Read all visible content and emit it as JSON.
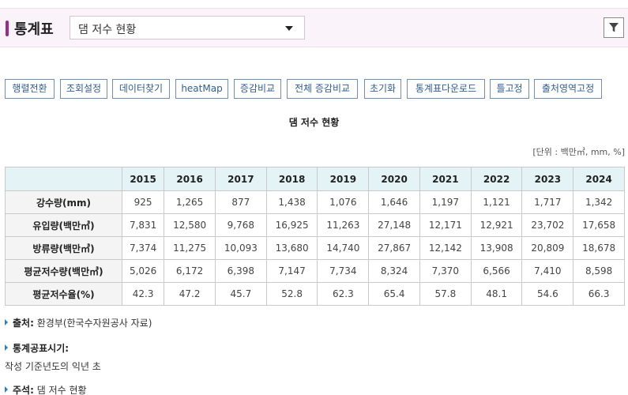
{
  "header": {
    "title": "통계표",
    "selected_table": "댐 저수 현황",
    "filter_icon": "filter-icon"
  },
  "toolbar": [
    "행렬전환",
    "조회설정",
    "데이터찾기",
    "heatMap",
    "증감비교",
    "전체 증감비교",
    "초기화",
    "통계표다운로드",
    "틀고정",
    "출처영역고정"
  ],
  "table": {
    "title": "댐 저수 현황",
    "unit": "[단위 : 백만㎥, mm, %]",
    "years": [
      "2015",
      "2016",
      "2017",
      "2018",
      "2019",
      "2020",
      "2021",
      "2022",
      "2023",
      "2024"
    ],
    "rows": [
      {
        "label": "강수량(mm)",
        "values": [
          "925",
          "1,265",
          "877",
          "1,438",
          "1,076",
          "1,646",
          "1,197",
          "1,121",
          "1,717",
          "1,342"
        ]
      },
      {
        "label": "유입량(백만㎥)",
        "values": [
          "7,831",
          "12,580",
          "9,768",
          "16,925",
          "11,263",
          "27,148",
          "12,171",
          "12,921",
          "23,702",
          "17,658"
        ]
      },
      {
        "label": "방류량(백만㎥)",
        "values": [
          "7,374",
          "11,275",
          "10,093",
          "13,680",
          "14,740",
          "27,867",
          "12,142",
          "13,908",
          "20,809",
          "18,678"
        ]
      },
      {
        "label": "평균저수량(백만㎥)",
        "values": [
          "5,026",
          "6,172",
          "6,398",
          "7,147",
          "7,734",
          "8,324",
          "7,370",
          "6,566",
          "7,410",
          "8,598"
        ]
      },
      {
        "label": "평균저수율(%)",
        "values": [
          "42.3",
          "47.2",
          "45.7",
          "52.8",
          "62.3",
          "65.4",
          "57.8",
          "48.1",
          "54.6",
          "66.3"
        ]
      }
    ]
  },
  "notes": {
    "source_label": "출처:",
    "source_value": "환경부(한국수자원공사 자료)",
    "publish_label": "통계공표시기:",
    "publish_value": "작성 기준년도의 익년 초",
    "remark_label": "주석:",
    "remark_value": "댐 저수 현황"
  }
}
